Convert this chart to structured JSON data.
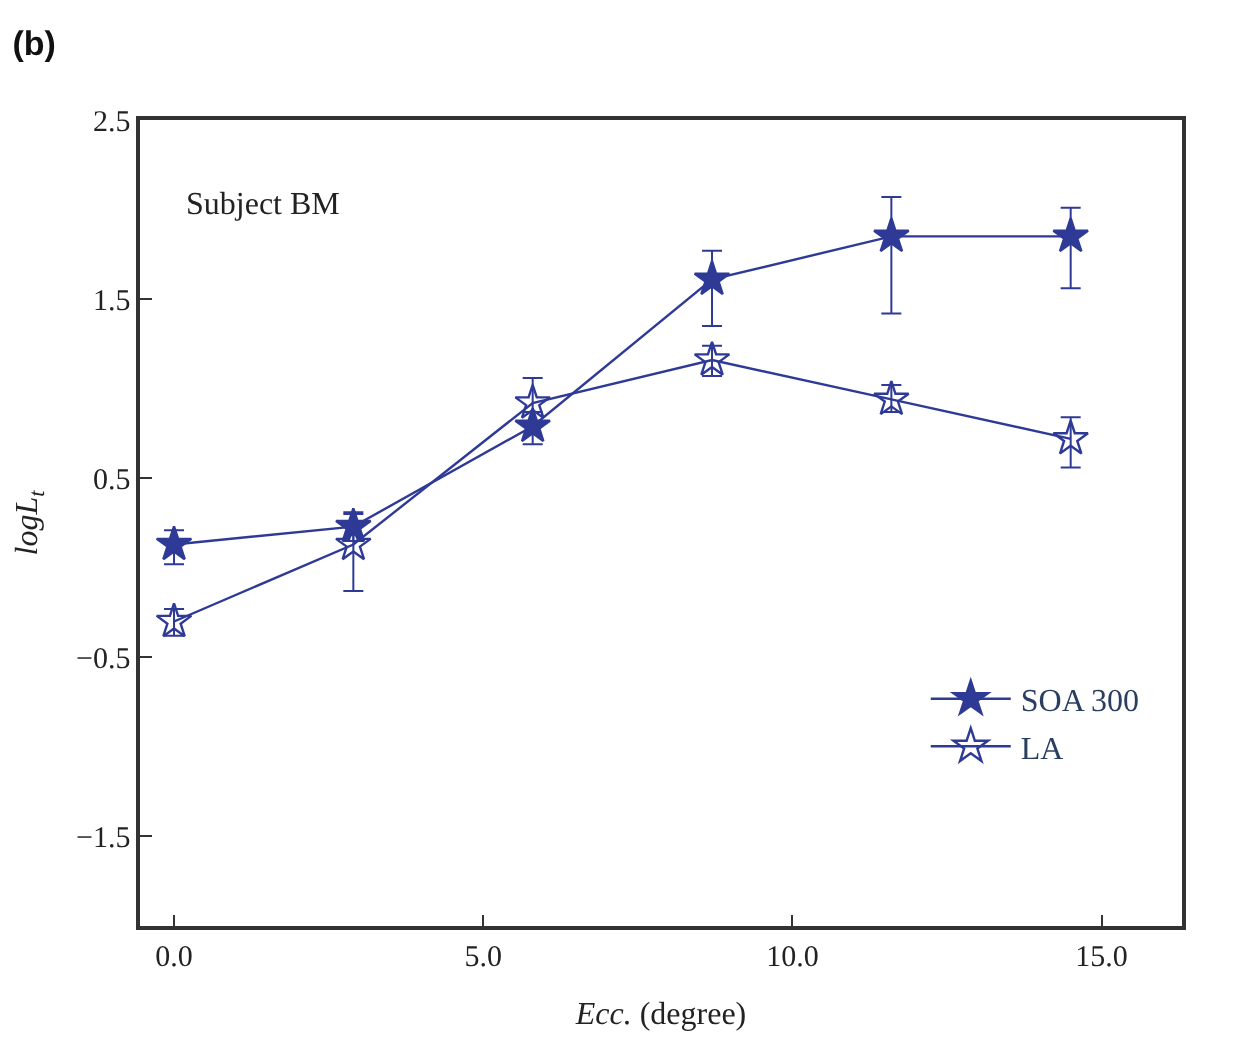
{
  "chart_data": {
    "type": "line",
    "title": "(b)",
    "xlabel": "Ecc. (degree)",
    "ylabel": "logL$_{t}$",
    "annotations": [
      "Subject BM"
    ],
    "x": [
      0.0,
      2.9,
      5.8,
      8.7,
      11.6,
      14.5
    ],
    "series": [
      {
        "name": "SOA 300",
        "color": "#2e3a96",
        "marker": "star",
        "values": [
          0.13,
          0.23,
          0.79,
          1.61,
          1.85,
          1.85
        ],
        "errors": [
          [
            0.02,
            0.21
          ],
          [
            0.15,
            0.31
          ],
          [
            0.69,
            0.87
          ],
          [
            1.35,
            1.77
          ],
          [
            1.42,
            2.07
          ],
          [
            1.56,
            2.01
          ]
        ]
      },
      {
        "name": "LA",
        "color": "#2e3a96",
        "marker": "star-open",
        "values": [
          -0.3,
          0.13,
          0.92,
          1.16,
          0.94,
          0.72
        ],
        "errors": [
          [
            -0.38,
            -0.23
          ],
          [
            -0.13,
            0.3
          ],
          [
            0.8,
            1.06
          ],
          [
            1.07,
            1.24
          ],
          [
            0.87,
            1.02
          ],
          [
            0.56,
            0.84
          ]
        ]
      }
    ],
    "xlim": [
      -0.55,
      16.3
    ],
    "xticks": [
      {
        "value": 0,
        "label": "0.0"
      },
      {
        "value": 5,
        "label": "5.0"
      },
      {
        "value": 10,
        "label": "10.0"
      },
      {
        "value": 15,
        "label": "15.0"
      }
    ],
    "ylim": [
      -2.0,
      2.5
    ],
    "yticks": [
      {
        "value": -1.5,
        "label": "−1.5"
      },
      {
        "value": -0.5,
        "label": "−0.5"
      },
      {
        "value": 0.5,
        "label": "0.5"
      },
      {
        "value": 1.5,
        "label": "1.5"
      },
      {
        "value": 2.5,
        "label": "2.5"
      }
    ],
    "legend": "bottom right",
    "line_style": "solid"
  }
}
